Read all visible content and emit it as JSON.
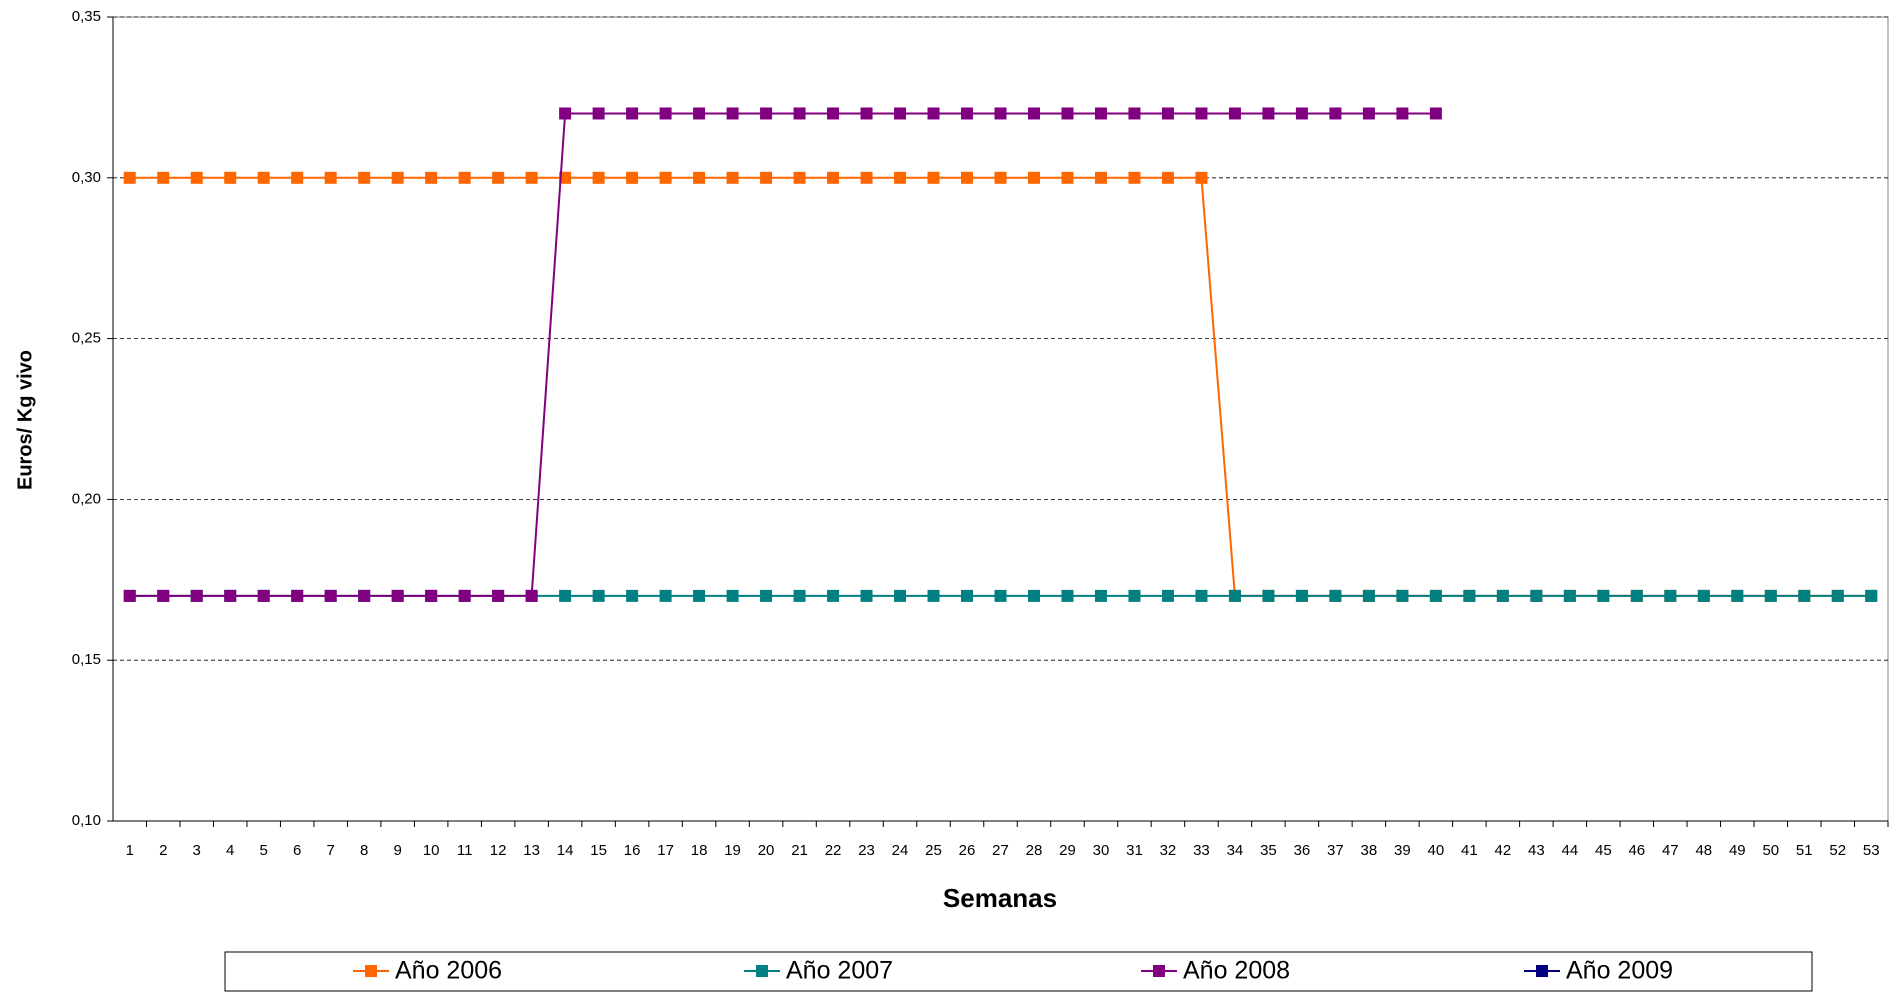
{
  "chart_data": {
    "type": "line",
    "x_label": "Semanas",
    "y_label": "Euros/ Kg vivo",
    "categories": [
      "1",
      "2",
      "3",
      "4",
      "5",
      "6",
      "7",
      "8",
      "9",
      "10",
      "11",
      "12",
      "13",
      "14",
      "15",
      "16",
      "17",
      "18",
      "19",
      "20",
      "21",
      "22",
      "23",
      "24",
      "25",
      "26",
      "27",
      "28",
      "29",
      "30",
      "31",
      "32",
      "33",
      "34",
      "35",
      "36",
      "37",
      "38",
      "39",
      "40",
      "41",
      "42",
      "43",
      "44",
      "45",
      "46",
      "47",
      "48",
      "49",
      "50",
      "51",
      "52",
      "53"
    ],
    "ylim": [
      0.1,
      0.35
    ],
    "yticks": [
      {
        "value": 0.1,
        "label": "0,10"
      },
      {
        "value": 0.15,
        "label": "0,15"
      },
      {
        "value": 0.2,
        "label": "0,20"
      },
      {
        "value": 0.25,
        "label": "0,25"
      },
      {
        "value": 0.3,
        "label": "0,30"
      },
      {
        "value": 0.35,
        "label": "0,35"
      }
    ],
    "grid": true,
    "series": [
      {
        "name": "Año 2006",
        "color": "#ff6600",
        "values": [
          0.3,
          0.3,
          0.3,
          0.3,
          0.3,
          0.3,
          0.3,
          0.3,
          0.3,
          0.3,
          0.3,
          0.3,
          0.3,
          0.3,
          0.3,
          0.3,
          0.3,
          0.3,
          0.3,
          0.3,
          0.3,
          0.3,
          0.3,
          0.3,
          0.3,
          0.3,
          0.3,
          0.3,
          0.3,
          0.3,
          0.3,
          0.3,
          0.3,
          0.17,
          0.17,
          0.17,
          0.17,
          0.17,
          0.17,
          0.17,
          0.17,
          0.17,
          0.17,
          0.17,
          0.17,
          0.17,
          0.17,
          0.17,
          0.17,
          0.17,
          0.17,
          0.17,
          0.17
        ]
      },
      {
        "name": "Año 2007",
        "color": "#008080",
        "values": [
          0.17,
          0.17,
          0.17,
          0.17,
          0.17,
          0.17,
          0.17,
          0.17,
          0.17,
          0.17,
          0.17,
          0.17,
          0.17,
          0.17,
          0.17,
          0.17,
          0.17,
          0.17,
          0.17,
          0.17,
          0.17,
          0.17,
          0.17,
          0.17,
          0.17,
          0.17,
          0.17,
          0.17,
          0.17,
          0.17,
          0.17,
          0.17,
          0.17,
          0.17,
          0.17,
          0.17,
          0.17,
          0.17,
          0.17,
          0.17,
          0.17,
          0.17,
          0.17,
          0.17,
          0.17,
          0.17,
          0.17,
          0.17,
          0.17,
          0.17,
          0.17,
          0.17,
          0.17
        ]
      },
      {
        "name": "Año 2008",
        "color": "#800080",
        "values": [
          0.17,
          0.17,
          0.17,
          0.17,
          0.17,
          0.17,
          0.17,
          0.17,
          0.17,
          0.17,
          0.17,
          0.17,
          0.17,
          0.32,
          0.32,
          0.32,
          0.32,
          0.32,
          0.32,
          0.32,
          0.32,
          0.32,
          0.32,
          0.32,
          0.32,
          0.32,
          0.32,
          0.32,
          0.32,
          0.32,
          0.32,
          0.32,
          0.32,
          0.32,
          0.32,
          0.32,
          0.32,
          0.32,
          0.32,
          0.32,
          null,
          null,
          null,
          null,
          null,
          null,
          null,
          null,
          null,
          null,
          null,
          null,
          null
        ]
      },
      {
        "name": "Año 2009",
        "color": "#000080",
        "values": [
          null,
          null,
          null,
          null,
          null,
          null,
          null,
          null,
          null,
          null,
          null,
          null,
          null,
          null,
          null,
          null,
          null,
          null,
          null,
          null,
          null,
          null,
          null,
          null,
          null,
          null,
          null,
          null,
          null,
          null,
          null,
          null,
          null,
          null,
          null,
          null,
          null,
          null,
          null,
          null,
          null,
          null,
          null,
          null,
          null,
          null,
          null,
          null,
          null,
          null,
          null,
          null,
          null
        ]
      }
    ]
  }
}
